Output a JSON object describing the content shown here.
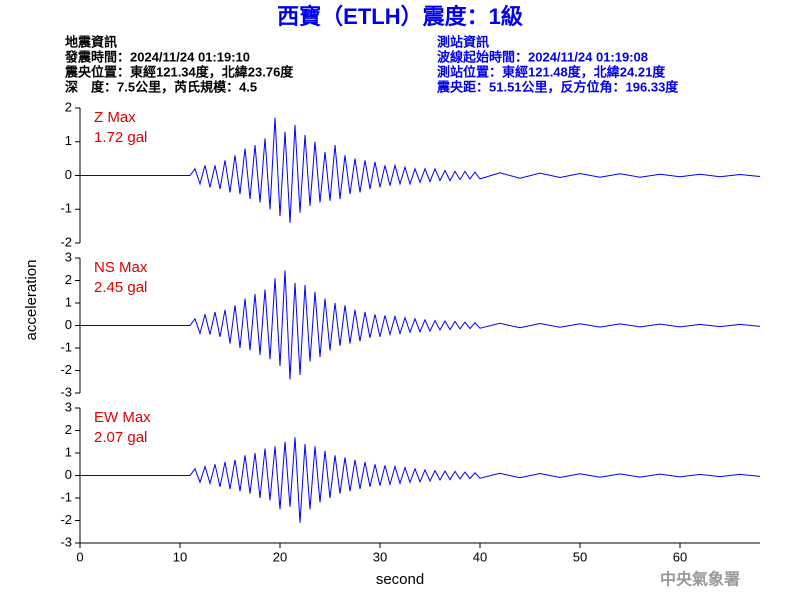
{
  "header": {
    "title": "西寶（ETLH）震度：1級",
    "left": [
      "地震資訊",
      "發震時間：2024/11/24 01:19:10",
      "震央位置：東經121.34度，北緯23.76度",
      "深　度：7.5公里，芮氏規模：4.5"
    ],
    "right": [
      "測站資訊",
      "波線起始時間：2024/11/24 01:19:08",
      "測站位置：東經121.48度，北緯24.21度",
      "震央距：51.51公里，反方位角：196.33度"
    ],
    "footer": "中央氣象署"
  },
  "chart_data": {
    "type": "line",
    "xlabel": "second",
    "ylabel": "acceleration",
    "xlim": [
      0,
      68
    ],
    "xticks": [
      0,
      10,
      20,
      30,
      40,
      50,
      60
    ],
    "x": [
      0,
      11,
      11.5,
      12,
      12.5,
      13,
      13.5,
      14,
      14.5,
      15,
      15.5,
      16,
      16.5,
      17,
      17.5,
      18,
      18.5,
      19,
      19.5,
      20,
      20.5,
      21,
      21.5,
      22,
      22.5,
      23,
      23.5,
      24,
      24.5,
      25,
      25.5,
      26,
      26.5,
      27,
      27.5,
      28,
      28.5,
      29,
      29.5,
      30,
      30.5,
      31,
      31.5,
      32,
      32.5,
      33,
      33.5,
      34,
      34.5,
      35,
      35.5,
      36,
      36.5,
      37,
      37.5,
      38,
      38.5,
      39,
      39.5,
      40,
      42,
      44,
      46,
      48,
      50,
      52,
      54,
      56,
      58,
      60,
      62,
      64,
      66,
      68
    ],
    "series": [
      {
        "name": "Z Max",
        "max_label": "1.72 gal",
        "color": "#0000ff",
        "ylim": [
          -2,
          2
        ],
        "yticks": [
          -2,
          -1,
          0,
          1,
          2
        ],
        "values": [
          0,
          0,
          0.2,
          -0.25,
          0.3,
          -0.35,
          0.3,
          -0.4,
          0.45,
          -0.5,
          0.6,
          -0.55,
          0.8,
          -0.7,
          0.9,
          -0.8,
          1.1,
          -1.0,
          1.72,
          -1.2,
          1.3,
          -1.4,
          1.5,
          -1.1,
          1.2,
          -0.9,
          1.0,
          -0.8,
          0.7,
          -0.75,
          0.9,
          -0.7,
          0.6,
          -0.55,
          0.5,
          -0.5,
          0.45,
          -0.4,
          0.4,
          -0.35,
          0.3,
          -0.3,
          0.3,
          -0.25,
          0.25,
          -0.25,
          0.2,
          -0.2,
          0.2,
          -0.18,
          0.2,
          -0.15,
          0.15,
          -0.15,
          0.12,
          -0.12,
          0.12,
          -0.1,
          0.1,
          -0.1,
          0.08,
          -0.08,
          0.07,
          -0.06,
          0.06,
          -0.05,
          0.05,
          -0.05,
          0.04,
          -0.04,
          0.04,
          -0.04,
          0.03,
          -0.03
        ]
      },
      {
        "name": "NS Max",
        "max_label": "2.45 gal",
        "color": "#0000ff",
        "ylim": [
          -3,
          3
        ],
        "yticks": [
          -3,
          -2,
          -1,
          0,
          1,
          2,
          3
        ],
        "values": [
          0,
          0,
          0.3,
          -0.35,
          0.5,
          -0.4,
          0.6,
          -0.5,
          0.7,
          -0.8,
          0.9,
          -1.0,
          1.2,
          -1.1,
          1.4,
          -1.3,
          1.6,
          -1.5,
          2.1,
          -1.8,
          2.45,
          -2.4,
          1.9,
          -2.2,
          1.8,
          -1.6,
          1.5,
          -1.4,
          1.2,
          -1.1,
          1.0,
          -0.9,
          0.9,
          -0.8,
          0.7,
          -0.7,
          0.6,
          -0.55,
          0.5,
          -0.5,
          0.45,
          -0.4,
          0.4,
          -0.35,
          0.35,
          -0.3,
          0.3,
          -0.28,
          0.25,
          -0.25,
          0.22,
          -0.2,
          0.2,
          -0.18,
          0.18,
          -0.15,
          0.15,
          -0.14,
          0.12,
          -0.12,
          0.1,
          -0.1,
          0.09,
          -0.08,
          0.08,
          -0.07,
          0.07,
          -0.06,
          0.06,
          -0.06,
          0.05,
          -0.05,
          0.05,
          -0.04
        ]
      },
      {
        "name": "EW Max",
        "max_label": "2.07 gal",
        "color": "#0000ff",
        "ylim": [
          -3,
          3
        ],
        "yticks": [
          -3,
          -2,
          -1,
          0,
          1,
          2,
          3
        ],
        "values": [
          0,
          0,
          0.3,
          -0.3,
          0.4,
          -0.35,
          0.5,
          -0.5,
          0.6,
          -0.6,
          0.7,
          -0.7,
          0.9,
          -0.8,
          1.0,
          -1.0,
          1.2,
          -1.1,
          1.3,
          -1.5,
          1.5,
          -1.4,
          1.7,
          -2.1,
          1.4,
          -1.5,
          1.3,
          -1.2,
          1.1,
          -1.0,
          0.9,
          -0.8,
          0.8,
          -0.7,
          0.7,
          -0.6,
          0.6,
          -0.5,
          0.5,
          -0.45,
          0.45,
          -0.4,
          0.4,
          -0.35,
          0.35,
          -0.3,
          0.3,
          -0.28,
          0.25,
          -0.25,
          0.22,
          -0.2,
          0.2,
          -0.18,
          0.18,
          -0.15,
          0.15,
          -0.14,
          0.12,
          -0.12,
          0.1,
          -0.1,
          0.09,
          -0.09,
          0.08,
          -0.08,
          0.07,
          -0.07,
          0.06,
          -0.06,
          0.05,
          -0.05,
          0.05,
          -0.04
        ]
      }
    ]
  }
}
